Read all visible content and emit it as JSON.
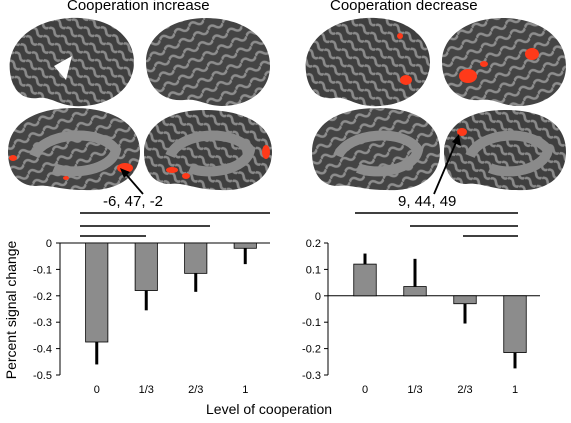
{
  "titles": {
    "left": "Cooperation increase",
    "right": "Cooperation decrease"
  },
  "coordinates": {
    "left": "-6, 47, -2",
    "right": "9, 44, 49"
  },
  "axis_labels": {
    "y": "Percent signal change",
    "x": "Level of cooperation"
  },
  "colors": {
    "brain_dark": "#3f3f3f",
    "brain_light": "#8a8a8a",
    "activation": "#ff3a1a",
    "bar_fill": "#8c8c8c"
  },
  "chart_data": [
    {
      "type": "bar",
      "categories": [
        "0",
        "1/3",
        "2/3",
        "1"
      ],
      "values": [
        -0.375,
        -0.18,
        -0.115,
        -0.02
      ],
      "errors": [
        0.085,
        0.075,
        0.07,
        0.06
      ],
      "ylabel": "Percent signal change",
      "xlabel": "Level of cooperation",
      "ylim": [
        -0.5,
        0
      ],
      "yticks": [
        "0",
        "-0.1",
        "-0.2",
        "-0.3",
        "-0.4",
        "-0.5"
      ],
      "grid": false
    },
    {
      "type": "bar",
      "categories": [
        "0",
        "1/3",
        "2/3",
        "1"
      ],
      "values": [
        0.12,
        0.035,
        -0.03,
        -0.215
      ],
      "errors": [
        0.04,
        0.105,
        0.075,
        0.06
      ],
      "xlabel": "Level of cooperation",
      "ylim": [
        -0.3,
        0.2
      ],
      "yticks": [
        "0.2",
        "0.1",
        "0",
        "-0.1",
        "-0.2",
        "-0.3"
      ],
      "grid": false
    }
  ]
}
